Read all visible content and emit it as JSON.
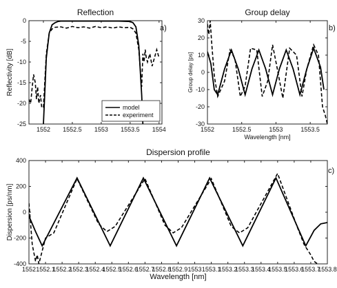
{
  "chart_data": [
    {
      "id": "a",
      "type": "line",
      "title": "Reflection",
      "panel_label": "a)",
      "xlabel": "",
      "ylabel": "Reflectivity [dB]",
      "xlim": [
        1551.75,
        1554.05
      ],
      "ylim": [
        -25,
        0
      ],
      "xticks": [
        1552,
        1552.5,
        1553,
        1553.5,
        1554
      ],
      "xtick_labels": [
        "1552",
        "1552.5",
        "1553",
        "1553.5",
        "1554"
      ],
      "yticks": [
        0,
        -5,
        -10,
        -15,
        -20,
        -25
      ],
      "ytick_labels": [
        "0",
        "-5",
        "-10",
        "-15",
        "-20",
        "-25"
      ],
      "legend": {
        "position": "bottom-right",
        "entries": [
          "model",
          "experiment"
        ]
      },
      "series": [
        {
          "name": "model",
          "style": "solid",
          "x": [
            1552.0,
            1552.05,
            1552.1,
            1552.15,
            1552.2,
            1552.25,
            1552.3,
            1552.4,
            1552.5,
            1552.7,
            1552.9,
            1553.1,
            1553.3,
            1553.5,
            1553.55,
            1553.6,
            1553.65,
            1553.7,
            1553.72
          ],
          "y": [
            -25,
            -9,
            -3,
            -1,
            -0.5,
            -0.2,
            -0.1,
            -0.1,
            -0.1,
            -0.1,
            -0.1,
            -0.1,
            -0.1,
            -0.2,
            -0.5,
            -1.5,
            -6,
            -18,
            -25
          ]
        },
        {
          "name": "experiment",
          "style": "dashed",
          "x": [
            1551.75,
            1551.78,
            1551.8,
            1551.83,
            1551.86,
            1551.88,
            1551.9,
            1551.92,
            1551.95,
            1551.97,
            1552.0,
            1552.05,
            1552.1,
            1552.15,
            1552.2,
            1552.3,
            1552.4,
            1552.5,
            1552.6,
            1552.7,
            1552.8,
            1552.9,
            1553.0,
            1553.1,
            1553.2,
            1553.3,
            1553.4,
            1553.5,
            1553.55,
            1553.6,
            1553.65,
            1553.7,
            1553.72,
            1553.74,
            1553.76,
            1553.78,
            1553.8,
            1553.84,
            1553.88,
            1553.92,
            1553.96,
            1554.0
          ],
          "y": [
            -19,
            -20,
            -17,
            -13,
            -15,
            -19,
            -16,
            -20,
            -18,
            -21,
            -21,
            -8,
            -3,
            -2,
            -1.6,
            -1.5,
            -1.8,
            -1.4,
            -1.7,
            -1.5,
            -1.8,
            -1.4,
            -1.7,
            -1.5,
            -1.8,
            -1.5,
            -1.7,
            -1.6,
            -2,
            -3,
            -7,
            -16,
            -8,
            -10,
            -7,
            -9,
            -10,
            -8,
            -11,
            -9,
            -7,
            -9
          ]
        }
      ]
    },
    {
      "id": "b",
      "type": "line",
      "title": "Group delay",
      "panel_label": "b)",
      "xlabel": "Wavelength [nm]",
      "ylabel": "Group delay [ps]",
      "xlim": [
        1552,
        1553.75
      ],
      "ylim": [
        -30,
        30
      ],
      "xticks": [
        1552,
        1552.5,
        1553,
        1553.5
      ],
      "xtick_labels": [
        "1552",
        "1552.5",
        "1553",
        "1553.5"
      ],
      "yticks": [
        30,
        20,
        10,
        0,
        -10,
        -20,
        -30
      ],
      "ytick_labels": [
        "30",
        "20",
        "10",
        "0",
        "-10",
        "-20",
        "-30"
      ],
      "series": [
        {
          "name": "model",
          "style": "solid",
          "x": [
            1552.0,
            1552.05,
            1552.1,
            1552.15,
            1552.25,
            1552.35,
            1552.45,
            1552.55,
            1552.65,
            1552.75,
            1552.85,
            1552.95,
            1553.05,
            1553.15,
            1553.25,
            1553.35,
            1553.45,
            1553.55,
            1553.65,
            1553.7
          ],
          "y": [
            12,
            5,
            -10,
            -13,
            2,
            13,
            2,
            -13,
            2,
            13,
            2,
            -13,
            2,
            13,
            2,
            -13,
            2,
            14,
            3,
            -10
          ]
        },
        {
          "name": "experiment",
          "style": "dashed",
          "x": [
            1552.0,
            1552.02,
            1552.04,
            1552.06,
            1552.1,
            1552.15,
            1552.25,
            1552.33,
            1552.4,
            1552.48,
            1552.55,
            1552.63,
            1552.72,
            1552.8,
            1552.88,
            1552.95,
            1553.02,
            1553.1,
            1553.2,
            1553.3,
            1553.38,
            1553.45,
            1553.55,
            1553.62,
            1553.68,
            1553.72,
            1553.75
          ],
          "y": [
            28,
            22,
            30,
            18,
            -2,
            -14,
            -5,
            13,
            8,
            -14,
            -8,
            14,
            13,
            -14,
            -5,
            16,
            2,
            -15,
            14,
            10,
            -14,
            2,
            16,
            10,
            -20,
            -25,
            -30
          ]
        }
      ]
    },
    {
      "id": "c",
      "type": "line",
      "title": "Dispersion profile",
      "panel_label": "c)",
      "xlabel": "Wavelength [nm]",
      "ylabel": "Dispersion [ps/nm]",
      "xlim": [
        1552,
        1553.8
      ],
      "ylim": [
        -400,
        400
      ],
      "xticks": [
        1552,
        1552.1,
        1552.2,
        1552.3,
        1552.4,
        1552.5,
        1552.6,
        1552.7,
        1552.8,
        1552.9,
        1553,
        1553.1,
        1553.2,
        1553.3,
        1553.4,
        1553.5,
        1553.6,
        1553.7,
        1553.8
      ],
      "xtick_labels": [
        "1552",
        "1552.1",
        "1552.2",
        "1552.3",
        "1552.4",
        "1552.5",
        "1552.6",
        "1552.7",
        "1552.8",
        "1552.9",
        "1553",
        "1553.1",
        "1553.2",
        "1553.3",
        "1553.4",
        "1553.5",
        "1553.6",
        "1553.7",
        "1553.8"
      ],
      "yticks": [
        400,
        200,
        0,
        -200,
        -400
      ],
      "ytick_labels": [
        "400",
        "200",
        "0",
        "-200",
        "-400"
      ],
      "series": [
        {
          "name": "model",
          "style": "solid",
          "x": [
            1552.0,
            1552.04,
            1552.08,
            1552.29,
            1552.49,
            1552.69,
            1552.89,
            1553.09,
            1553.29,
            1553.49,
            1553.67,
            1553.72,
            1553.76,
            1553.8
          ],
          "y": [
            -30,
            -150,
            -260,
            265,
            -260,
            265,
            -260,
            265,
            -260,
            265,
            -260,
            -140,
            -90,
            -80
          ]
        },
        {
          "name": "experiment",
          "style": "dashed",
          "x": [
            1552.0,
            1552.02,
            1552.04,
            1552.05,
            1552.06,
            1552.07,
            1552.08,
            1552.1,
            1552.15,
            1552.29,
            1552.42,
            1552.47,
            1552.52,
            1552.7,
            1552.82,
            1552.87,
            1552.92,
            1553.1,
            1553.22,
            1553.27,
            1553.32,
            1553.5,
            1553.62,
            1553.66,
            1553.7,
            1553.72,
            1553.74
          ],
          "y": [
            70,
            -250,
            -380,
            -330,
            -400,
            -350,
            -300,
            -200,
            -160,
            260,
            -90,
            -150,
            -110,
            260,
            -100,
            -160,
            -120,
            260,
            -110,
            -160,
            -120,
            300,
            -120,
            -250,
            -330,
            -380,
            -400
          ]
        }
      ]
    }
  ]
}
